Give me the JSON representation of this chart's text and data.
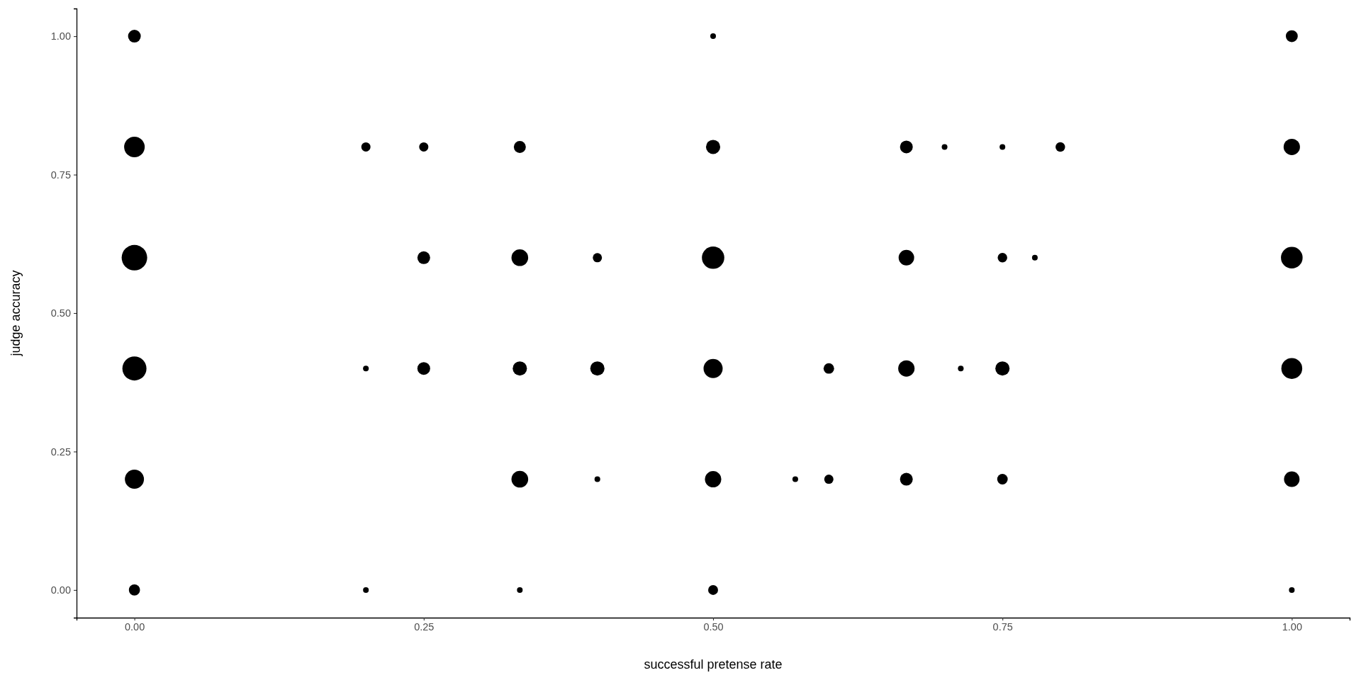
{
  "chart_data": {
    "type": "bubble",
    "xlabel": "successful pretense rate",
    "ylabel": "judge accuracy",
    "xlim": [
      -0.05,
      1.05
    ],
    "ylim": [
      -0.05,
      1.05
    ],
    "xticks": [
      {
        "value": 0,
        "label": "0.00"
      },
      {
        "value": 0.25,
        "label": "0.25"
      },
      {
        "value": 0.5,
        "label": "0.50"
      },
      {
        "value": 0.75,
        "label": "0.75"
      },
      {
        "value": 1,
        "label": "1.00"
      }
    ],
    "yticks": [
      {
        "value": 0,
        "label": "0.00"
      },
      {
        "value": 0.25,
        "label": "0.25"
      },
      {
        "value": 0.5,
        "label": "0.50"
      },
      {
        "value": 0.75,
        "label": "0.75"
      },
      {
        "value": 1,
        "label": "1.00"
      }
    ],
    "series": [
      {
        "color": "#000000",
        "x": [
          0,
          0,
          0,
          0,
          0,
          0,
          0.2,
          0.2,
          0.2,
          0.25,
          0.25,
          0.25,
          0.333,
          0.333,
          0.333,
          0.333,
          0.333,
          0.4,
          0.4,
          0.4,
          0.5,
          0.5,
          0.5,
          0.5,
          0.5,
          0.5,
          0.571,
          0.6,
          0.6,
          0.667,
          0.667,
          0.667,
          0.667,
          0.7,
          0.714,
          0.75,
          0.75,
          0.75,
          0.75,
          0.778,
          0.8,
          1,
          1,
          1,
          1,
          1,
          1
        ],
        "values": [
          1,
          0.8,
          0.6,
          0.4,
          0.2,
          0,
          0.8,
          0.4,
          0,
          0.8,
          0.6,
          0.4,
          0.8,
          0.6,
          0.4,
          0.2,
          0,
          0.6,
          0.4,
          0.2,
          1,
          0.8,
          0.6,
          0.4,
          0.2,
          0,
          0.2,
          0.4,
          0.2,
          0.8,
          0.6,
          0.4,
          0.2,
          0.8,
          0.4,
          0.8,
          0.6,
          0.4,
          0.2,
          0.6,
          0.8,
          1,
          0.8,
          0.6,
          0.4,
          0.2,
          0
        ],
        "sizes": [
          0.25,
          0.65,
          1,
          0.89,
          0.56,
          0.19,
          0.13,
          0.05,
          0.05,
          0.13,
          0.25,
          0.25,
          0.22,
          0.43,
          0.31,
          0.43,
          0.05,
          0.13,
          0.31,
          0.05,
          0.05,
          0.31,
          0.77,
          0.56,
          0.41,
          0.15,
          0.05,
          0.17,
          0.13,
          0.25,
          0.37,
          0.41,
          0.25,
          0.05,
          0.05,
          0.05,
          0.14,
          0.31,
          0.17,
          0.05,
          0.14,
          0.22,
          0.41,
          0.72,
          0.67,
          0.37,
          0.05
        ]
      }
    ]
  }
}
